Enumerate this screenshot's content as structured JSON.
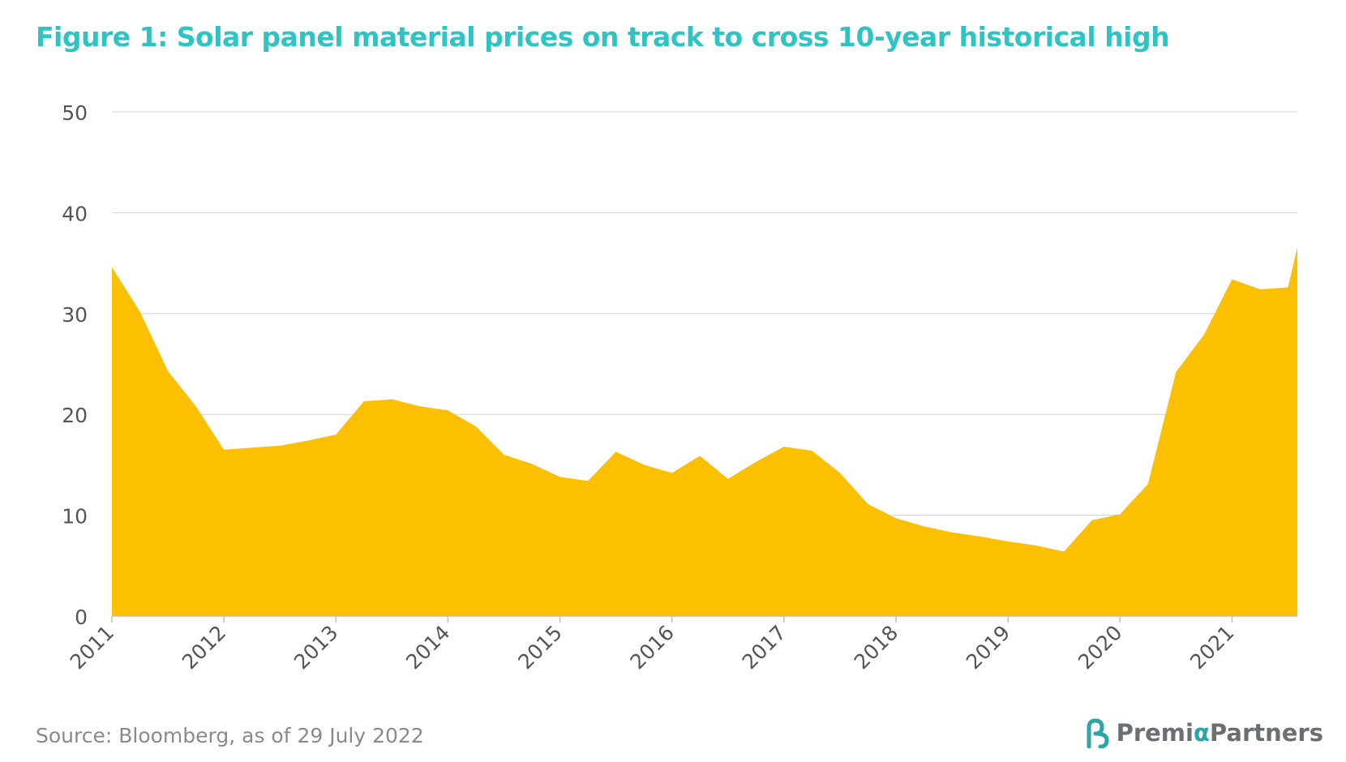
{
  "title": "Figure 1: Solar panel material prices on track to cross 10-year historical high",
  "source": "Source: Bloomberg, as of 29 July 2022",
  "logo": {
    "name_part1": "Premi",
    "name_alpha": "α",
    "name_part2": "Partners"
  },
  "colors": {
    "title": "#2ec4c4",
    "area": "#fcc000",
    "grid": "#d9d9d9",
    "axis_text": "#555555"
  },
  "chart_data": {
    "type": "area",
    "title": "Figure 1: Solar panel material prices on track to cross 10-year historical high",
    "xlabel": "",
    "ylabel": "",
    "ylim": [
      0,
      50
    ],
    "yticks": [
      0,
      10,
      20,
      30,
      40,
      50
    ],
    "xticks": [
      "2011",
      "2012",
      "2013",
      "2014",
      "2015",
      "2016",
      "2017",
      "2018",
      "2019",
      "2020",
      "2021"
    ],
    "grid": true,
    "legend": "none",
    "series": [
      {
        "x": [
          "2011-01",
          "2011-04",
          "2011-07",
          "2011-10",
          "2012-01",
          "2012-04",
          "2012-07",
          "2012-10",
          "2013-01",
          "2013-04",
          "2013-07",
          "2013-10",
          "2014-01",
          "2014-04",
          "2014-07",
          "2014-10",
          "2015-01",
          "2015-04",
          "2015-07",
          "2015-10",
          "2016-01",
          "2016-04",
          "2016-07",
          "2016-10",
          "2017-01",
          "2017-04",
          "2017-07",
          "2017-10",
          "2018-01",
          "2018-04",
          "2018-07",
          "2018-10",
          "2019-01",
          "2019-04",
          "2019-07",
          "2019-10",
          "2020-01",
          "2020-04",
          "2020-07",
          "2020-10",
          "2021-01",
          "2021-04",
          "2021-07",
          "2021-08"
        ],
        "values": [
          34.6,
          30.2,
          24.3,
          20.8,
          16.5,
          16.7,
          16.9,
          17.4,
          18.0,
          21.3,
          21.5,
          20.8,
          20.4,
          18.8,
          16.0,
          15.1,
          13.8,
          13.4,
          16.3,
          15.0,
          14.2,
          15.9,
          13.6,
          15.3,
          16.8,
          16.4,
          14.2,
          11.1,
          9.7,
          8.9,
          8.3,
          7.9,
          7.4,
          7.0,
          6.4,
          9.5,
          10.1,
          13.1,
          24.2,
          27.9,
          33.4,
          32.4,
          32.6,
          36.6
        ]
      }
    ]
  }
}
